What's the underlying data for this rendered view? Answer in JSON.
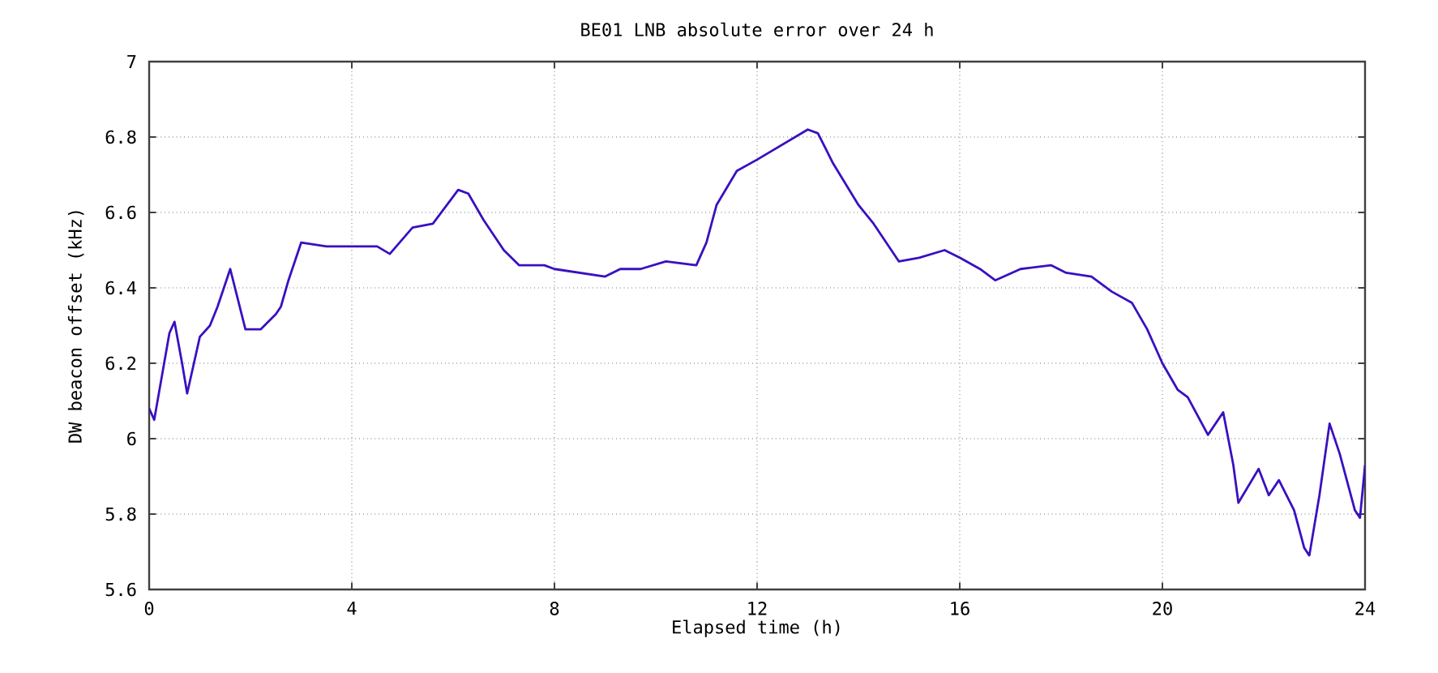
{
  "chart_data": {
    "type": "line",
    "title": "BE01 LNB absolute error over 24 h",
    "xlabel": "Elapsed time (h)",
    "ylabel": "DW beacon offset (kHz)",
    "xlim": [
      0,
      24
    ],
    "xticks": [
      0,
      4,
      8,
      12,
      16,
      20,
      24
    ],
    "ylim": [
      5.6,
      7
    ],
    "yticks": [
      5.6,
      5.8,
      6,
      6.2,
      6.4,
      6.6,
      6.8,
      7
    ],
    "grid": true,
    "marker": "none",
    "line_style": "solid",
    "series": [
      {
        "color": "#3a10c0",
        "x": [
          0,
          0.1,
          0.4,
          0.5,
          0.65,
          0.75,
          1.0,
          1.2,
          1.35,
          1.6,
          1.9,
          2.2,
          2.5,
          2.6,
          2.75,
          3.0,
          3.5,
          4.0,
          4.5,
          4.75,
          5.2,
          5.6,
          6.1,
          6.3,
          6.6,
          7.0,
          7.3,
          7.8,
          8.0,
          8.5,
          9.0,
          9.3,
          9.7,
          10.2,
          10.8,
          11.0,
          11.2,
          11.6,
          12.0,
          12.5,
          13.0,
          13.2,
          13.5,
          14.0,
          14.3,
          14.8,
          15.2,
          15.7,
          16.0,
          16.4,
          16.7,
          17.2,
          17.8,
          18.1,
          18.6,
          19.0,
          19.4,
          19.7,
          20.0,
          20.3,
          20.5,
          20.9,
          21.2,
          21.4,
          21.5,
          21.9,
          22.1,
          22.3,
          22.6,
          22.8,
          22.9,
          23.1,
          23.3,
          23.5,
          23.8,
          23.9,
          24
        ],
        "values": [
          6.08,
          6.05,
          6.28,
          6.31,
          6.2,
          6.12,
          6.27,
          6.3,
          6.35,
          6.45,
          6.29,
          6.29,
          6.33,
          6.35,
          6.42,
          6.52,
          6.51,
          6.51,
          6.51,
          6.49,
          6.56,
          6.57,
          6.66,
          6.65,
          6.58,
          6.5,
          6.46,
          6.46,
          6.45,
          6.44,
          6.43,
          6.45,
          6.45,
          6.47,
          6.46,
          6.52,
          6.62,
          6.71,
          6.74,
          6.78,
          6.82,
          6.81,
          6.73,
          6.62,
          6.57,
          6.47,
          6.48,
          6.5,
          6.48,
          6.45,
          6.42,
          6.45,
          6.46,
          6.44,
          6.43,
          6.39,
          6.36,
          6.29,
          6.2,
          6.13,
          6.11,
          6.01,
          6.07,
          5.93,
          5.83,
          5.92,
          5.85,
          5.89,
          5.81,
          5.71,
          5.69,
          5.85,
          6.04,
          5.96,
          5.81,
          5.79,
          5.93
        ]
      }
    ]
  }
}
